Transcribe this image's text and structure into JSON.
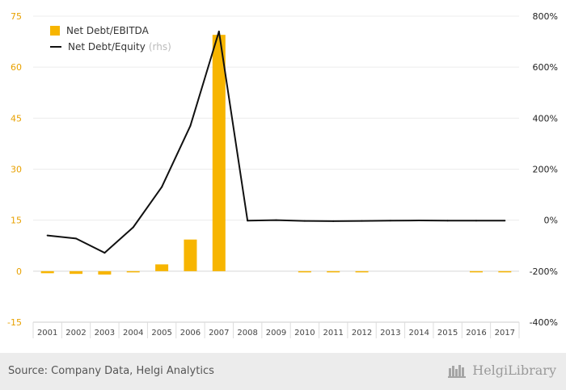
{
  "chart_data": {
    "type": "bar",
    "categories": [
      "2001",
      "2002",
      "2003",
      "2004",
      "2005",
      "2006",
      "2007",
      "2008",
      "2009",
      "2010",
      "2011",
      "2012",
      "2013",
      "2014",
      "2015",
      "2016",
      "2017"
    ],
    "series": [
      {
        "name": "Net Debt/EBITDA",
        "type": "bar",
        "axis": "left",
        "color": "#f7b500",
        "values": [
          -0.6,
          -0.8,
          -1.0,
          -0.3,
          2.0,
          9.3,
          69.5,
          null,
          null,
          -0.2,
          -0.3,
          -0.3,
          null,
          null,
          null,
          -0.2,
          -0.2
        ]
      },
      {
        "name": "Net Debt/Equity",
        "suffix": "(rhs)",
        "type": "line",
        "axis": "right",
        "color": "#111111",
        "values": [
          -60,
          -72,
          -128,
          -28,
          130,
          370,
          740,
          -2,
          0,
          -3,
          -4,
          -3,
          -2,
          -1,
          -2,
          -2,
          -2
        ]
      }
    ],
    "y_left": {
      "ticks": [
        -15,
        0,
        15,
        30,
        45,
        60,
        75
      ],
      "range": [
        -15,
        75
      ],
      "negative_tick_color": "#e8a100"
    },
    "y_right": {
      "ticks": [
        "-400%",
        "-200%",
        "0%",
        "200%",
        "400%",
        "600%",
        "800%"
      ],
      "tick_values": [
        -400,
        -200,
        0,
        200,
        400,
        600,
        800
      ],
      "range": [
        -400,
        800
      ]
    },
    "grid": true,
    "legend_position": "top-left"
  },
  "footer": {
    "source": "Source: Company Data, Helgi Analytics",
    "brand": "HelgiLibrary"
  }
}
